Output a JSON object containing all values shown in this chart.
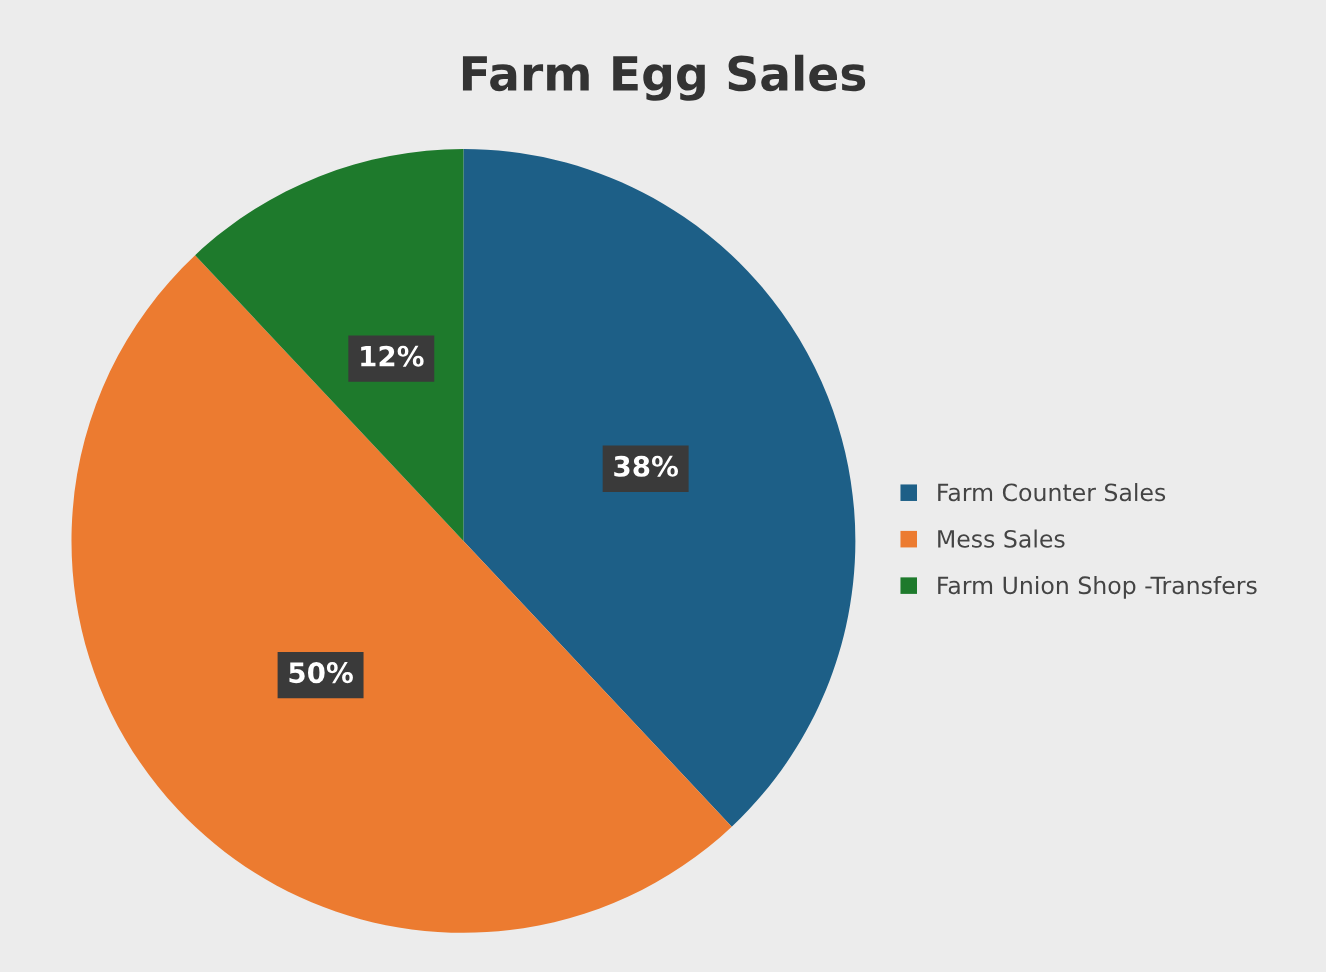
{
  "chart_data": {
    "type": "pie",
    "title": "Farm Egg Sales",
    "categories": [
      "Farm Counter Sales",
      "Mess Sales",
      "Farm Union Shop -Transfers"
    ],
    "values": [
      38,
      50,
      12
    ],
    "colors": [
      "#1d5f87",
      "#ec7b30",
      "#1e7a2c"
    ],
    "value_labels": [
      "38%",
      "50%",
      "12%"
    ],
    "legend": "right"
  }
}
